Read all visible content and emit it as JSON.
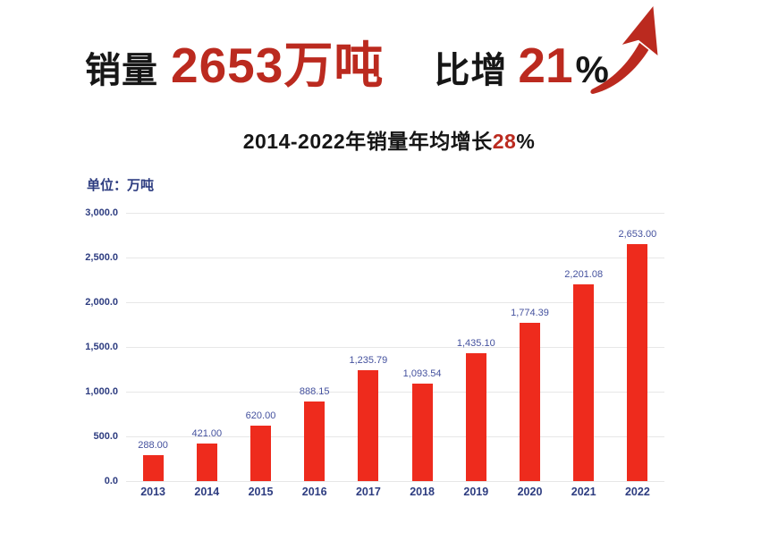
{
  "header": {
    "sales_label": "销量",
    "sales_value": "2653万吨",
    "growth_label": "比增",
    "growth_value": "21",
    "percent_sign": "%"
  },
  "subtitle": {
    "prefix": "2014-2022年销量年均增长",
    "highlight": "28",
    "suffix": "%"
  },
  "unit_label": "单位：万吨",
  "colors": {
    "accent_red": "#bb2a1f",
    "bar_red": "#ee2b1d",
    "navy": "#2d3c80",
    "value_label_blue": "#44519e",
    "grid_gray": "#e7e7e7",
    "text_black": "#161616"
  },
  "chart_data": {
    "type": "bar",
    "title": "2014-2022年销量年均增长28%",
    "xlabel": "",
    "ylabel": "万吨",
    "unit": "万吨",
    "categories": [
      "2013",
      "2014",
      "2015",
      "2016",
      "2017",
      "2018",
      "2019",
      "2020",
      "2021",
      "2022"
    ],
    "values": [
      288.0,
      421.0,
      620.0,
      888.15,
      1235.79,
      1093.54,
      1435.1,
      1774.39,
      2201.08,
      2653.0
    ],
    "value_labels": [
      "288.00",
      "421.00",
      "620.00",
      "888.15",
      "1,235.79",
      "1,093.54",
      "1,435.10",
      "1,774.39",
      "2,201.08",
      "2,653.00"
    ],
    "ylim": [
      0,
      3000
    ],
    "y_ticks": [
      3000,
      2500,
      2000,
      1500,
      1000,
      500,
      0
    ],
    "y_tick_labels": [
      "3,000.0",
      "2,500.0",
      "2,000.0",
      "1,500.0",
      "1,000.0",
      "500.0",
      "0.0"
    ],
    "grid": true,
    "legend": "none",
    "bar_color": "#ee2b1d"
  }
}
